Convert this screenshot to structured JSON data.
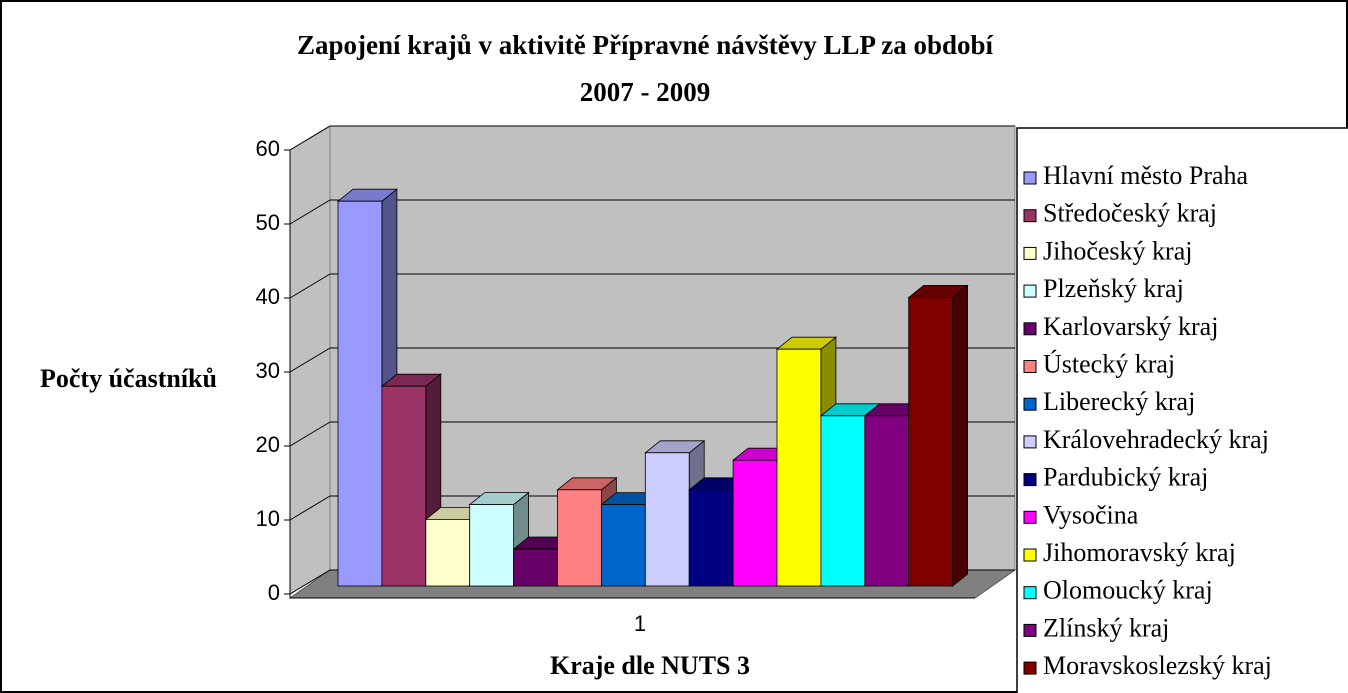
{
  "chart_data": {
    "type": "bar",
    "title": "Zapojení krajů v aktivitě Přípravné návštěvy LLP za období",
    "subtitle": "2007 - 2009",
    "x_label": "Kraje dle NUTS 3",
    "y_label": "Počty účastníků",
    "categories": [
      "1"
    ],
    "ylim": [
      0,
      60
    ],
    "yticks": [
      0,
      10,
      20,
      30,
      40,
      50,
      60
    ],
    "grid": true,
    "legend": "right",
    "series": [
      {
        "name": "Hlavní město Praha",
        "color": "#9999ff",
        "values": [
          52
        ]
      },
      {
        "name": "Středočeský kraj",
        "color": "#993366",
        "values": [
          27
        ]
      },
      {
        "name": "Jihočeský kraj",
        "color": "#ffffcc",
        "values": [
          9
        ]
      },
      {
        "name": "Plzeňský kraj",
        "color": "#ccffff",
        "values": [
          11
        ]
      },
      {
        "name": "Karlovarský kraj",
        "color": "#660066",
        "values": [
          5
        ]
      },
      {
        "name": "Ústecký kraj",
        "color": "#ff8080",
        "values": [
          13
        ]
      },
      {
        "name": "Liberecký kraj",
        "color": "#0066cc",
        "values": [
          11
        ]
      },
      {
        "name": "Královehradecký kraj",
        "color": "#ccccff",
        "values": [
          18
        ]
      },
      {
        "name": "Pardubický kraj",
        "color": "#000080",
        "values": [
          13
        ]
      },
      {
        "name": "Vysočina",
        "color": "#ff00ff",
        "values": [
          17
        ]
      },
      {
        "name": "Jihomoravský kraj",
        "color": "#ffff00",
        "values": [
          32
        ]
      },
      {
        "name": "Olomoucký kraj",
        "color": "#00ffff",
        "values": [
          23
        ]
      },
      {
        "name": "Zlínský kraj",
        "color": "#800080",
        "values": [
          23
        ]
      },
      {
        "name": "Moravskoslezský kraj",
        "color": "#800000",
        "values": [
          39
        ]
      }
    ]
  }
}
